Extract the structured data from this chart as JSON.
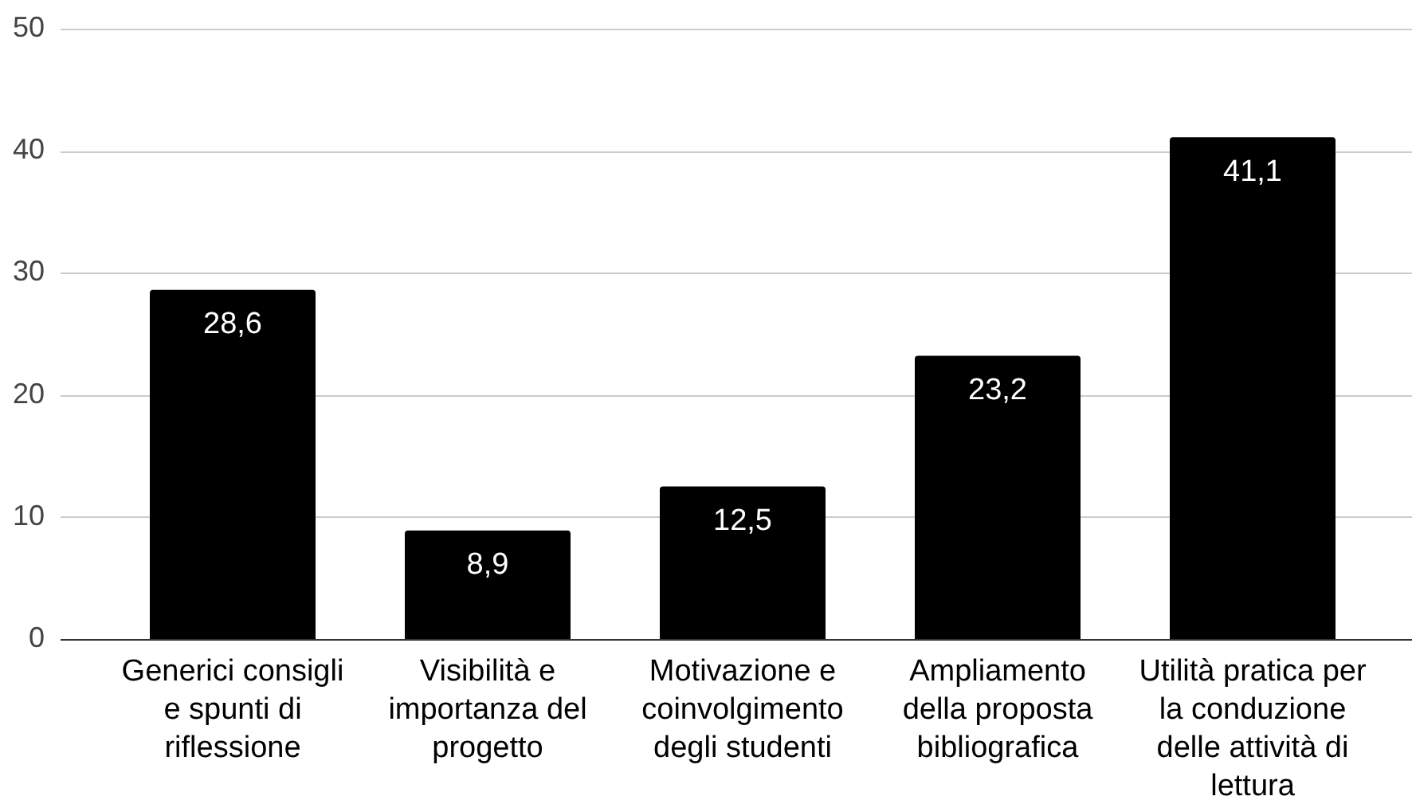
{
  "chart_data": {
    "type": "bar",
    "categories": [
      "Generici consigli e spunti di riflessione",
      "Visibilità e importanza del progetto",
      "Motivazione e coinvolgimento degli studenti",
      "Ampliamento della proposta bibliografica",
      "Utilità pratica per la conduzione delle attività di lettura"
    ],
    "values": [
      28.6,
      8.9,
      12.5,
      23.2,
      41.1
    ],
    "value_labels": [
      "28,6",
      "8,9",
      "12,5",
      "23,2",
      "41,1"
    ],
    "color": "#000000",
    "ylim": [
      0,
      50
    ],
    "yticks": [
      0,
      10,
      20,
      30,
      40,
      50
    ],
    "grid": "y"
  }
}
